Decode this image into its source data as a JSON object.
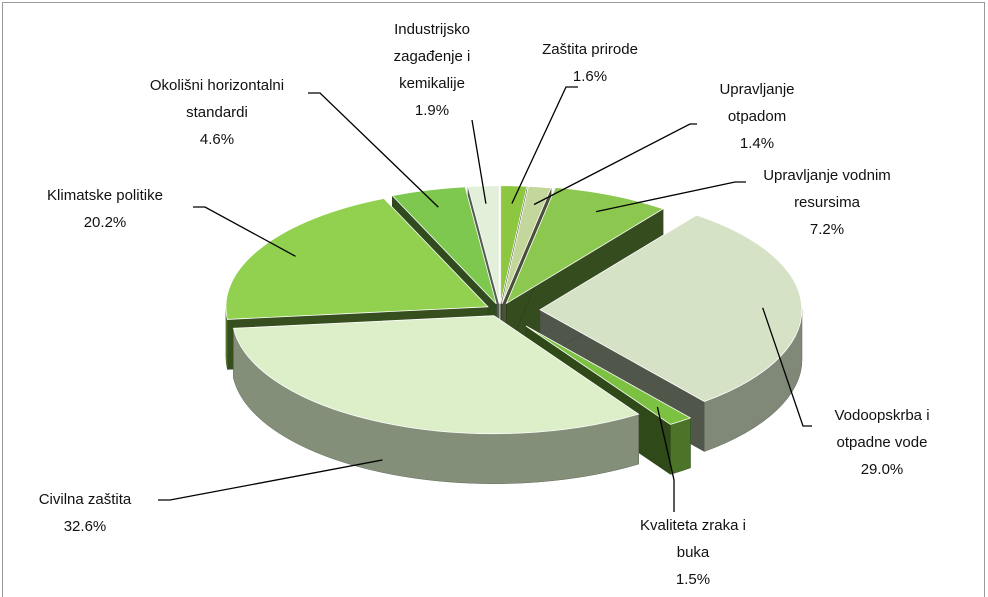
{
  "chart_data": {
    "type": "pie",
    "categories": [
      "Zaštita prirode",
      "Upravljanje otpadom",
      "Upravljanje vodnim resursima",
      "Vodoopskrba i otpadne vode",
      "Kvaliteta zraka i buka",
      "Civilna zaštita",
      "Klimatske politike",
      "Okolišni horizontalni standardi",
      "Industrijsko zagađenje i kemikalije"
    ],
    "values": [
      1.6,
      1.4,
      7.2,
      29.0,
      1.5,
      32.6,
      20.2,
      4.6,
      1.9
    ],
    "value_labels": [
      "1.6%",
      "1.4%",
      "7.2%",
      "29.0%",
      "1.5%",
      "32.6%",
      "20.2%",
      "4.6%",
      "1.9%"
    ],
    "colors": [
      "#8dc63f",
      "#c3d69b",
      "#8cc850",
      "#d6e2c6",
      "#7dc142",
      "#dcefc9",
      "#92d050",
      "#7ec850",
      "#e2efd9"
    ]
  }
}
